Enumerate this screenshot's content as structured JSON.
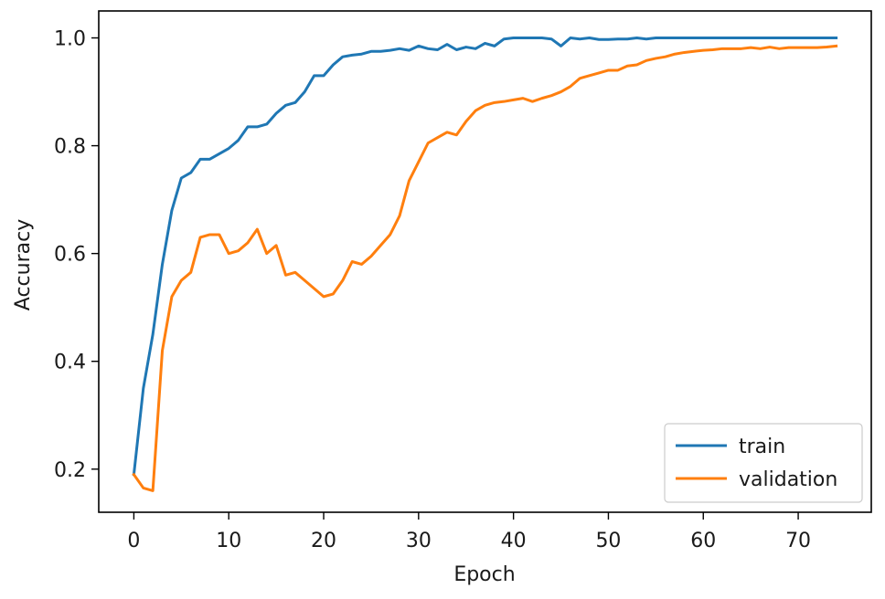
{
  "chart_data": {
    "type": "line",
    "title": "",
    "xlabel": "Epoch",
    "ylabel": "Accuracy",
    "xlim": [
      -3.7,
      77.7
    ],
    "ylim": [
      0.12,
      1.05
    ],
    "xticks": [
      0,
      10,
      20,
      30,
      40,
      50,
      60,
      70
    ],
    "xtick_labels": [
      "0",
      "10",
      "20",
      "30",
      "40",
      "50",
      "60",
      "70"
    ],
    "yticks": [
      0.2,
      0.4,
      0.6,
      0.8,
      1.0
    ],
    "ytick_labels": [
      "0.2",
      "0.4",
      "0.6",
      "0.8",
      "1.0"
    ],
    "grid": false,
    "legend_position": "lower-right",
    "series": [
      {
        "name": "train",
        "color": "#1f77b4",
        "x": [
          0,
          1,
          2,
          3,
          4,
          5,
          6,
          7,
          8,
          9,
          10,
          11,
          12,
          13,
          14,
          15,
          16,
          17,
          18,
          19,
          20,
          21,
          22,
          23,
          24,
          25,
          26,
          27,
          28,
          29,
          30,
          31,
          32,
          33,
          34,
          35,
          36,
          37,
          38,
          39,
          40,
          41,
          42,
          43,
          44,
          45,
          46,
          47,
          48,
          49,
          50,
          51,
          52,
          53,
          54,
          55,
          56,
          57,
          58,
          59,
          60,
          61,
          62,
          63,
          64,
          65,
          66,
          67,
          68,
          69,
          70,
          71,
          72,
          73,
          74
        ],
        "values": [
          0.19,
          0.35,
          0.45,
          0.58,
          0.68,
          0.74,
          0.75,
          0.775,
          0.775,
          0.785,
          0.795,
          0.81,
          0.835,
          0.835,
          0.84,
          0.86,
          0.875,
          0.88,
          0.9,
          0.93,
          0.93,
          0.95,
          0.965,
          0.968,
          0.97,
          0.975,
          0.975,
          0.977,
          0.98,
          0.977,
          0.985,
          0.98,
          0.978,
          0.988,
          0.978,
          0.983,
          0.98,
          0.99,
          0.985,
          0.998,
          1.0,
          1.0,
          1.0,
          1.0,
          0.998,
          0.985,
          1.0,
          0.998,
          1.0,
          0.997,
          0.997,
          0.998,
          0.998,
          1.0,
          0.998,
          1.0,
          1.0,
          1.0,
          1.0,
          1.0,
          1.0,
          1.0,
          1.0,
          1.0,
          1.0,
          1.0,
          1.0,
          1.0,
          1.0,
          1.0,
          1.0,
          1.0,
          1.0,
          1.0,
          1.0
        ]
      },
      {
        "name": "validation",
        "color": "#ff7f0e",
        "x": [
          0,
          1,
          2,
          3,
          4,
          5,
          6,
          7,
          8,
          9,
          10,
          11,
          12,
          13,
          14,
          15,
          16,
          17,
          18,
          19,
          20,
          21,
          22,
          23,
          24,
          25,
          26,
          27,
          28,
          29,
          30,
          31,
          32,
          33,
          34,
          35,
          36,
          37,
          38,
          39,
          40,
          41,
          42,
          43,
          44,
          45,
          46,
          47,
          48,
          49,
          50,
          51,
          52,
          53,
          54,
          55,
          56,
          57,
          58,
          59,
          60,
          61,
          62,
          63,
          64,
          65,
          66,
          67,
          68,
          69,
          70,
          71,
          72,
          73,
          74
        ],
        "values": [
          0.19,
          0.165,
          0.16,
          0.42,
          0.52,
          0.55,
          0.565,
          0.63,
          0.635,
          0.635,
          0.6,
          0.605,
          0.62,
          0.645,
          0.6,
          0.615,
          0.56,
          0.565,
          0.55,
          0.535,
          0.52,
          0.525,
          0.55,
          0.585,
          0.58,
          0.595,
          0.615,
          0.635,
          0.67,
          0.735,
          0.77,
          0.805,
          0.815,
          0.825,
          0.82,
          0.845,
          0.865,
          0.875,
          0.88,
          0.882,
          0.885,
          0.888,
          0.882,
          0.888,
          0.893,
          0.9,
          0.91,
          0.925,
          0.93,
          0.935,
          0.94,
          0.94,
          0.948,
          0.95,
          0.958,
          0.962,
          0.965,
          0.97,
          0.973,
          0.975,
          0.977,
          0.978,
          0.98,
          0.98,
          0.98,
          0.982,
          0.98,
          0.983,
          0.98,
          0.982,
          0.982,
          0.982,
          0.982,
          0.983,
          0.985
        ]
      }
    ]
  }
}
